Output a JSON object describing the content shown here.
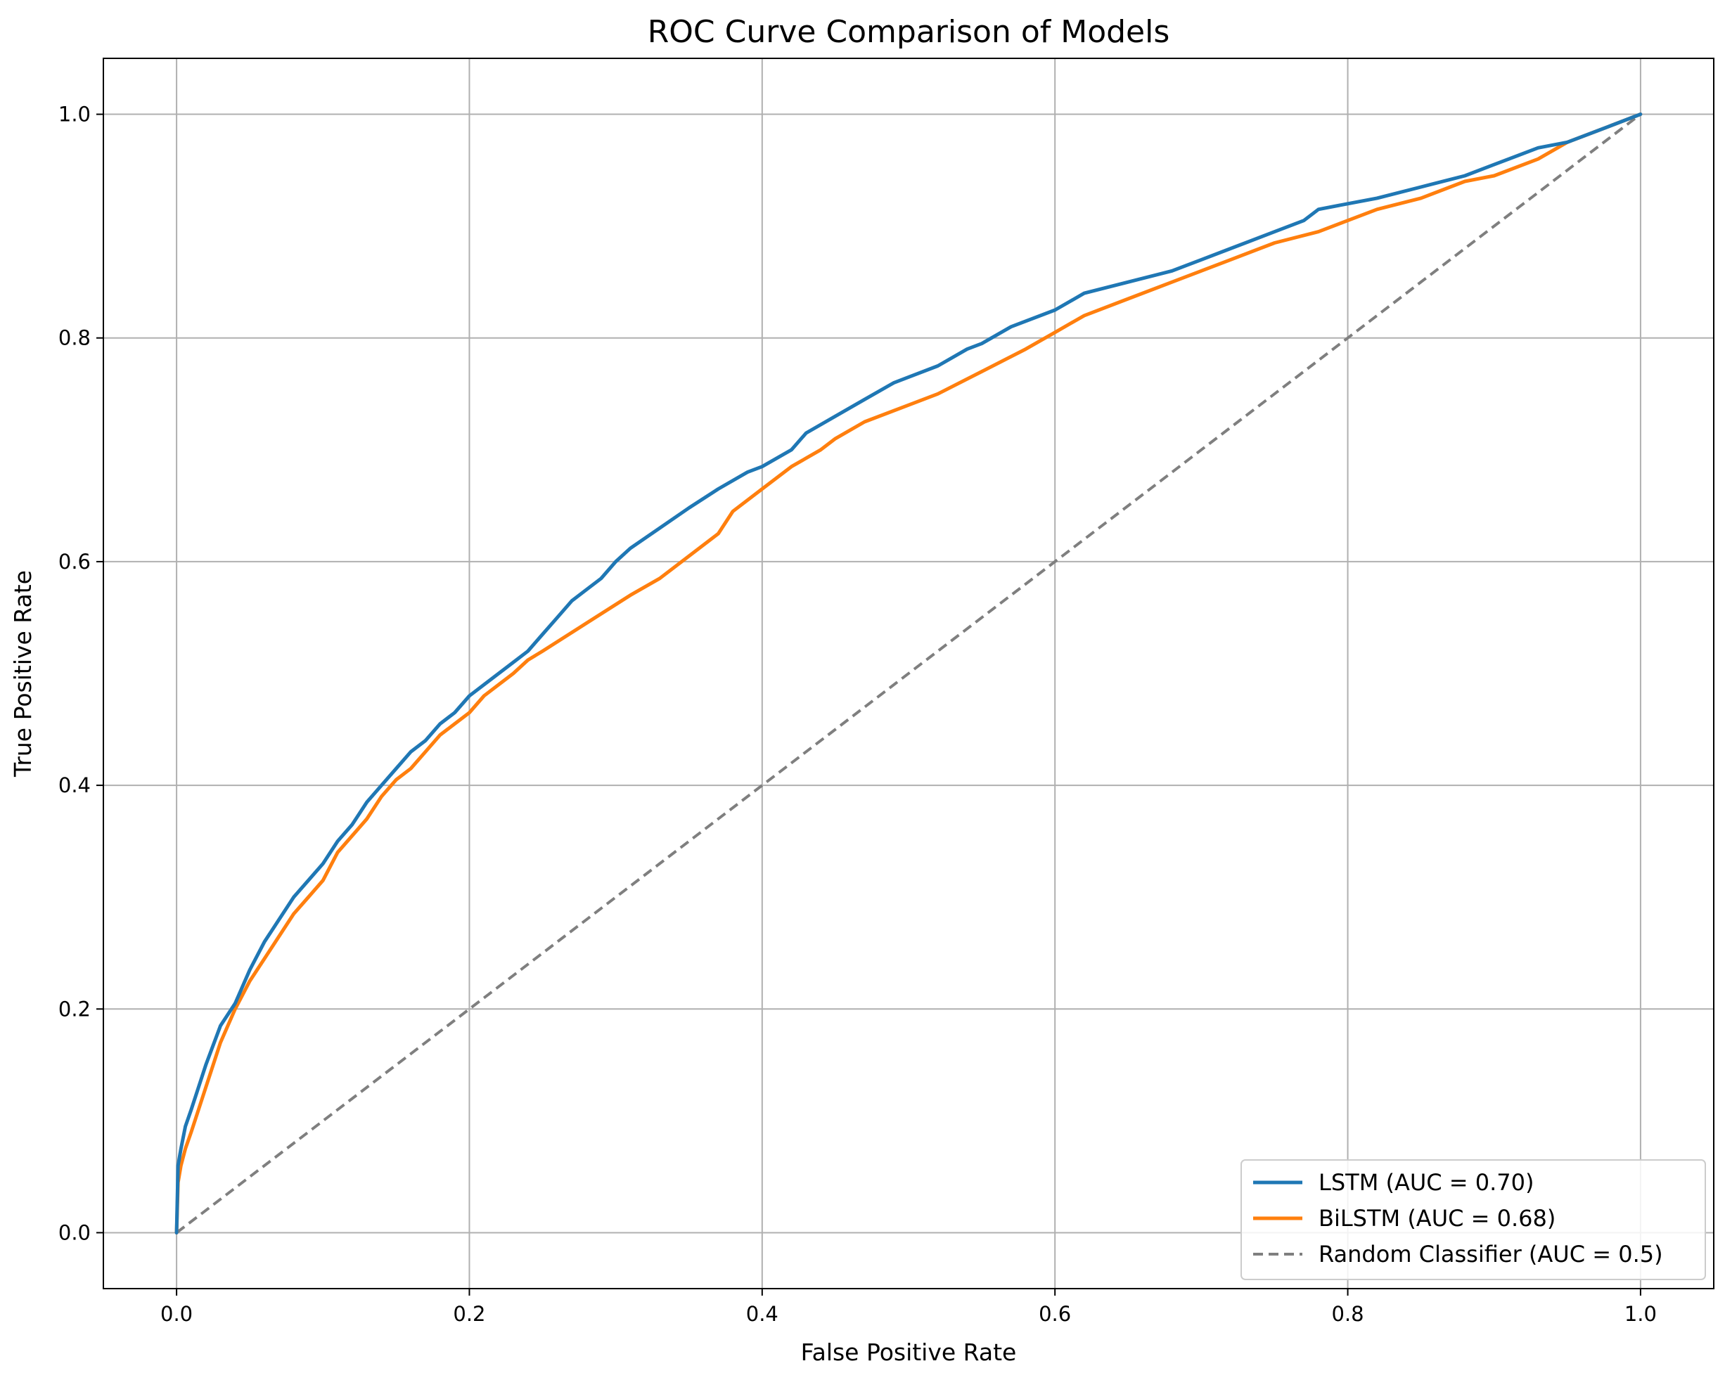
{
  "chart_data": {
    "type": "line",
    "title": "ROC Curve Comparison of Models",
    "xlabel": "False Positive Rate",
    "ylabel": "True Positive Rate",
    "xlim": [
      -0.05,
      1.05
    ],
    "ylim": [
      -0.05,
      1.05
    ],
    "xticks": [
      0.0,
      0.2,
      0.4,
      0.6,
      0.8,
      1.0
    ],
    "yticks": [
      0.0,
      0.2,
      0.4,
      0.6,
      0.8,
      1.0
    ],
    "xtick_labels": [
      "0.0",
      "0.2",
      "0.4",
      "0.6",
      "0.8",
      "1.0"
    ],
    "ytick_labels": [
      "0.0",
      "0.2",
      "0.4",
      "0.6",
      "0.8",
      "1.0"
    ],
    "grid": true,
    "legend_position": "lower-right",
    "series": [
      {
        "name": "LSTM (AUC = 0.70)",
        "color": "#1f77b4",
        "style": "solid",
        "x": [
          0,
          0.001,
          0.003,
          0.006,
          0.01,
          0.015,
          0.02,
          0.03,
          0.04,
          0.05,
          0.06,
          0.07,
          0.08,
          0.09,
          0.1,
          0.11,
          0.12,
          0.13,
          0.14,
          0.15,
          0.16,
          0.17,
          0.18,
          0.19,
          0.2,
          0.21,
          0.22,
          0.23,
          0.24,
          0.25,
          0.26,
          0.27,
          0.28,
          0.29,
          0.3,
          0.31,
          0.33,
          0.35,
          0.37,
          0.39,
          0.4,
          0.42,
          0.43,
          0.45,
          0.47,
          0.49,
          0.5,
          0.52,
          0.54,
          0.55,
          0.57,
          0.6,
          0.62,
          0.65,
          0.68,
          0.7,
          0.72,
          0.75,
          0.77,
          0.78,
          0.8,
          0.82,
          0.85,
          0.88,
          0.9,
          0.93,
          0.95,
          0.98,
          1.0
        ],
        "y": [
          0,
          0.06,
          0.075,
          0.095,
          0.11,
          0.13,
          0.15,
          0.185,
          0.205,
          0.235,
          0.26,
          0.28,
          0.3,
          0.315,
          0.33,
          0.35,
          0.365,
          0.385,
          0.4,
          0.415,
          0.43,
          0.44,
          0.455,
          0.465,
          0.48,
          0.49,
          0.5,
          0.51,
          0.52,
          0.535,
          0.55,
          0.565,
          0.575,
          0.585,
          0.6,
          0.612,
          0.63,
          0.648,
          0.665,
          0.68,
          0.685,
          0.7,
          0.715,
          0.73,
          0.745,
          0.76,
          0.765,
          0.775,
          0.79,
          0.795,
          0.81,
          0.825,
          0.84,
          0.85,
          0.86,
          0.87,
          0.88,
          0.895,
          0.905,
          0.915,
          0.92,
          0.925,
          0.935,
          0.945,
          0.955,
          0.97,
          0.975,
          0.99,
          1.0
        ]
      },
      {
        "name": "BiLSTM (AUC = 0.68)",
        "color": "#ff7f0e",
        "style": "solid",
        "x": [
          0,
          0.001,
          0.003,
          0.006,
          0.01,
          0.015,
          0.02,
          0.03,
          0.04,
          0.05,
          0.06,
          0.07,
          0.08,
          0.09,
          0.1,
          0.11,
          0.12,
          0.13,
          0.14,
          0.15,
          0.16,
          0.17,
          0.18,
          0.19,
          0.2,
          0.21,
          0.22,
          0.23,
          0.24,
          0.25,
          0.28,
          0.31,
          0.33,
          0.35,
          0.37,
          0.38,
          0.4,
          0.42,
          0.44,
          0.45,
          0.47,
          0.5,
          0.52,
          0.55,
          0.58,
          0.6,
          0.62,
          0.65,
          0.68,
          0.7,
          0.72,
          0.75,
          0.78,
          0.8,
          0.82,
          0.85,
          0.88,
          0.9,
          0.93,
          0.95,
          0.98,
          1.0
        ],
        "y": [
          0,
          0.045,
          0.06,
          0.075,
          0.09,
          0.11,
          0.13,
          0.17,
          0.2,
          0.225,
          0.245,
          0.265,
          0.285,
          0.3,
          0.315,
          0.34,
          0.355,
          0.37,
          0.39,
          0.405,
          0.415,
          0.43,
          0.445,
          0.455,
          0.465,
          0.48,
          0.49,
          0.5,
          0.512,
          0.52,
          0.545,
          0.57,
          0.585,
          0.605,
          0.625,
          0.645,
          0.665,
          0.685,
          0.7,
          0.71,
          0.725,
          0.74,
          0.75,
          0.77,
          0.79,
          0.805,
          0.82,
          0.835,
          0.85,
          0.86,
          0.87,
          0.885,
          0.895,
          0.905,
          0.915,
          0.925,
          0.94,
          0.945,
          0.96,
          0.975,
          0.99,
          1.0
        ]
      },
      {
        "name": "Random Classifier (AUC = 0.5)",
        "color": "#7f7f7f",
        "style": "dashed",
        "x": [
          0,
          1
        ],
        "y": [
          0,
          1
        ]
      }
    ]
  }
}
